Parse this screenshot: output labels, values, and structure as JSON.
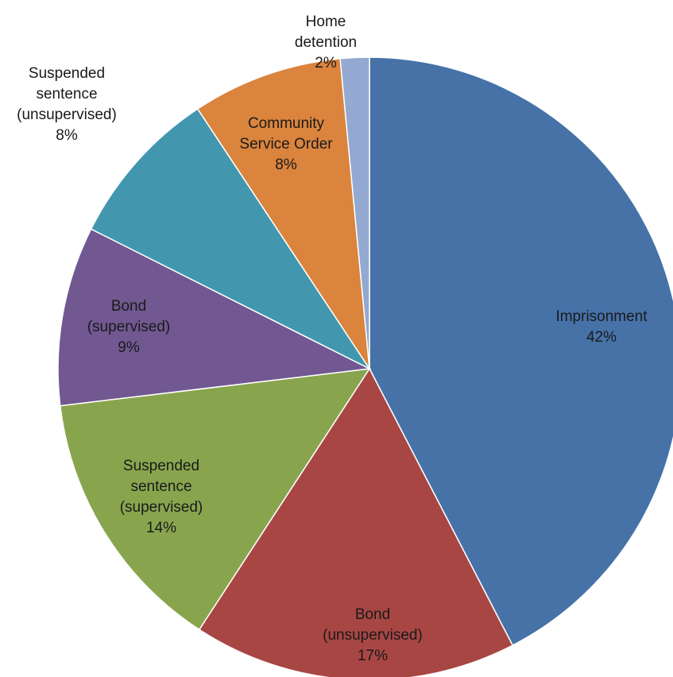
{
  "chart_data": {
    "type": "pie",
    "start_angle_deg": 0,
    "direction": "clockwise",
    "slices": [
      {
        "name_lines": [
          "Imprisonment"
        ],
        "pct_label": "42%",
        "value": 42.4,
        "color": "#4672A8"
      },
      {
        "name_lines": [
          "Bond",
          "(unsupervised)"
        ],
        "pct_label": "17%",
        "value": 16.8,
        "color": "#A84643"
      },
      {
        "name_lines": [
          "Suspended",
          "sentence",
          "(supervised)"
        ],
        "pct_label": "14%",
        "value": 13.9,
        "color": "#88A54E"
      },
      {
        "name_lines": [
          "Bond",
          "(supervised)"
        ],
        "pct_label": "9%",
        "value": 9.3,
        "color": "#715891"
      },
      {
        "name_lines": [
          "Suspended",
          "sentence",
          "(unsupervised)"
        ],
        "pct_label": "8%",
        "value": 8.3,
        "color": "#4297AF"
      },
      {
        "name_lines": [
          "Community",
          "Service Order"
        ],
        "pct_label": "8%",
        "value": 7.8,
        "color": "#DB843D"
      },
      {
        "name_lines": [
          "Home",
          "detention"
        ],
        "pct_label": "2%",
        "value": 1.5,
        "color": "#94A9D1"
      }
    ]
  }
}
